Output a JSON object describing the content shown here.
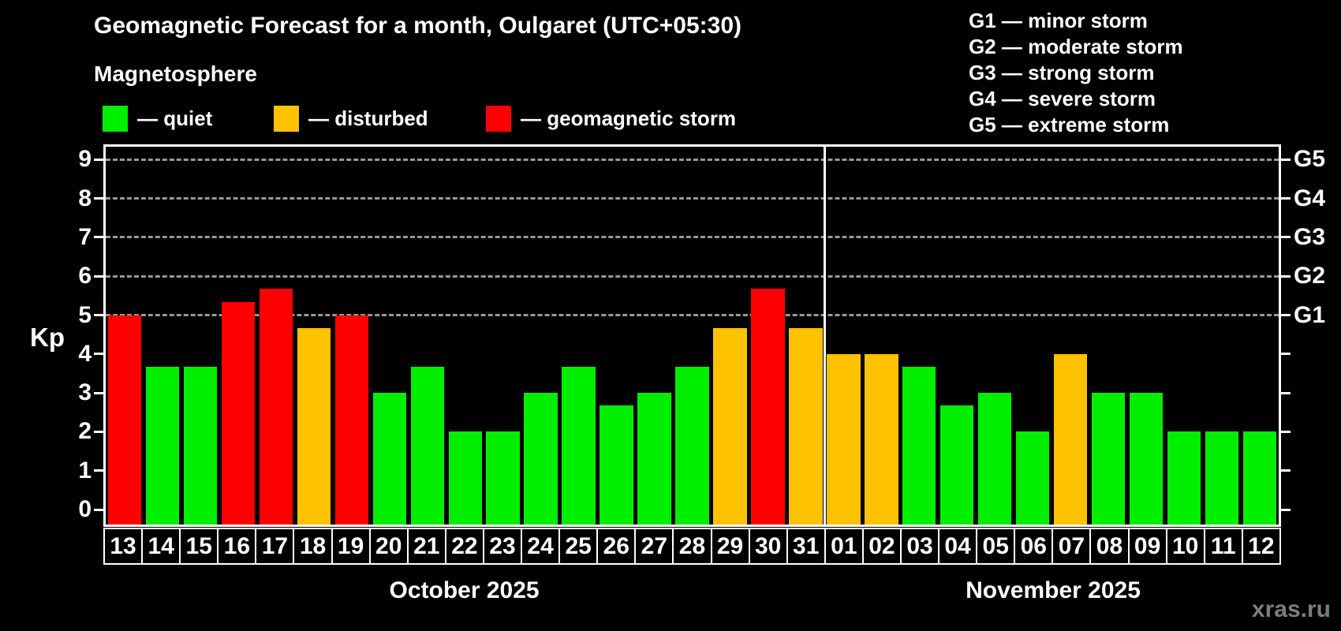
{
  "title": "Geomagnetic Forecast for a month, Oulgaret (UTC+05:30)",
  "subtitle": "Magnetosphere",
  "legend": [
    {
      "status": "quiet",
      "label": "— quiet"
    },
    {
      "status": "disturbed",
      "label": "— disturbed"
    },
    {
      "status": "storm",
      "label": "— geomagnetic storm"
    }
  ],
  "g_legend": [
    "G1 — minor storm",
    "G2 — moderate storm",
    "G3 — strong storm",
    "G4 — severe storm",
    "G5 — extreme storm"
  ],
  "watermark": "xras.ru",
  "chart_data": {
    "type": "bar",
    "ylabel": "Kp",
    "ylim": [
      0,
      9
    ],
    "y_ticks": [
      0,
      1,
      2,
      3,
      4,
      5,
      6,
      7,
      8,
      9
    ],
    "gridlines": [
      5,
      6,
      7,
      8,
      9
    ],
    "right_axis_labels": [
      {
        "value": 5,
        "label": "G1"
      },
      {
        "value": 6,
        "label": "G2"
      },
      {
        "value": 7,
        "label": "G3"
      },
      {
        "value": 8,
        "label": "G4"
      },
      {
        "value": 9,
        "label": "G5"
      }
    ],
    "months": [
      {
        "label": "October 2025",
        "days": 19
      },
      {
        "label": "November 2025",
        "days": 12
      }
    ],
    "categories": [
      "13",
      "14",
      "15",
      "16",
      "17",
      "18",
      "19",
      "20",
      "21",
      "22",
      "23",
      "24",
      "25",
      "26",
      "27",
      "28",
      "29",
      "30",
      "31",
      "01",
      "02",
      "03",
      "04",
      "05",
      "06",
      "07",
      "08",
      "09",
      "10",
      "11",
      "12"
    ],
    "values": [
      5,
      3.67,
      3.67,
      5.33,
      5.67,
      4.67,
      5,
      3,
      3.67,
      2,
      2,
      3,
      3.67,
      2.67,
      3,
      3.67,
      4.67,
      5.67,
      4.67,
      4,
      4,
      3.67,
      2.67,
      3,
      2,
      4,
      3,
      3,
      2,
      2,
      2
    ],
    "statuses": [
      "storm",
      "quiet",
      "quiet",
      "storm",
      "storm",
      "disturbed",
      "storm",
      "quiet",
      "quiet",
      "quiet",
      "quiet",
      "quiet",
      "quiet",
      "quiet",
      "quiet",
      "quiet",
      "disturbed",
      "storm",
      "disturbed",
      "disturbed",
      "disturbed",
      "quiet",
      "quiet",
      "quiet",
      "quiet",
      "disturbed",
      "quiet",
      "quiet",
      "quiet",
      "quiet",
      "quiet"
    ],
    "colors": {
      "quiet": "#00ee00",
      "disturbed": "#ffc200",
      "storm": "#ff0000"
    }
  }
}
